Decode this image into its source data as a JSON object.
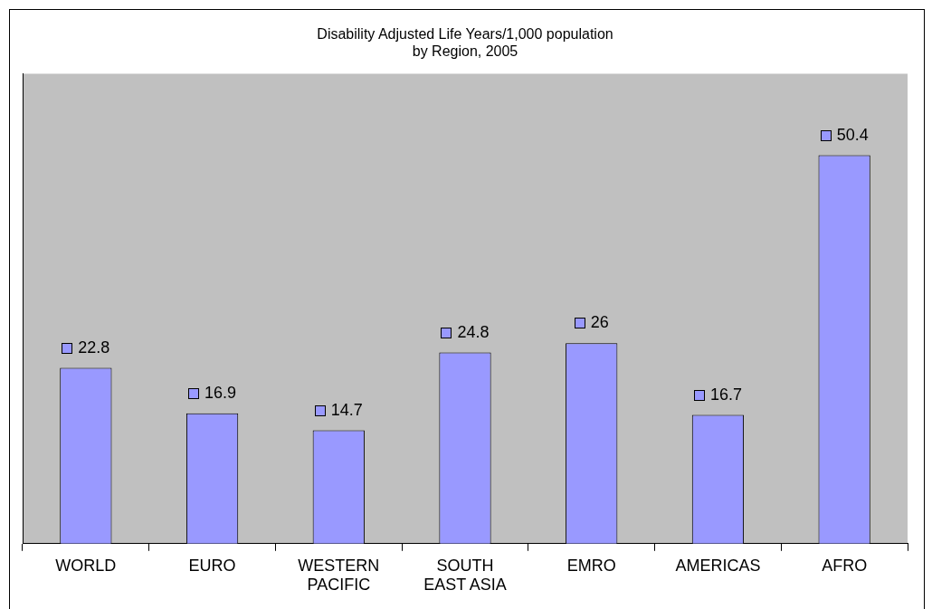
{
  "chart_data": {
    "type": "bar",
    "title": [
      "Disability Adjusted Life Years/1,000 population",
      "by Region, 2005"
    ],
    "categories": [
      "WORLD",
      "EURO",
      "WESTERN PACIFIC",
      "SOUTH EAST ASIA",
      "EMRO",
      "AMERICAS",
      "AFRO"
    ],
    "values": [
      22.8,
      16.9,
      14.7,
      24.8,
      26,
      16.7,
      50.4
    ],
    "color": "#9999ff",
    "data_labels": true,
    "grid": false,
    "legend": false
  }
}
